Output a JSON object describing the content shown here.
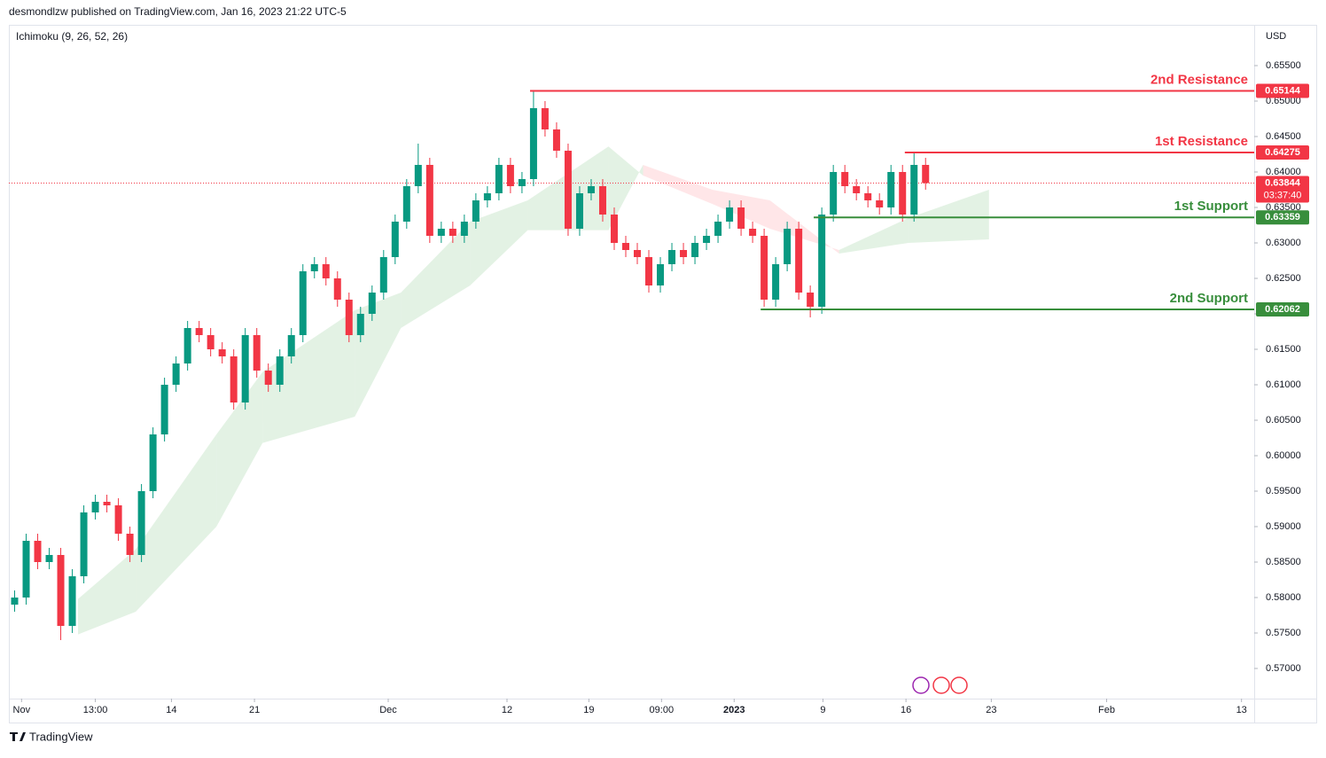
{
  "header": {
    "publisher": "desmondlzw published on TradingView.com, Jan 16, 2023 21:22 UTC-5",
    "indicator": "Ichimoku (9, 26, 52, 26)",
    "currency": "USD",
    "footer": "TradingView"
  },
  "chart_data": {
    "type": "candlestick",
    "up_color": "#089981",
    "down_color": "#f23645",
    "open": [
      0.579,
      0.58,
      0.588,
      0.585,
      0.586,
      0.576,
      0.583,
      0.592,
      0.5935,
      0.593,
      0.589,
      0.586,
      0.595,
      0.603,
      0.61,
      0.613,
      0.618,
      0.617,
      0.615,
      0.614,
      0.6075,
      0.617,
      0.612,
      0.61,
      0.614,
      0.617,
      0.626,
      0.627,
      0.625,
      0.622,
      0.617,
      0.62,
      0.623,
      0.628,
      0.633,
      0.638,
      0.641,
      0.631,
      0.632,
      0.631,
      0.633,
      0.636,
      0.637,
      0.641,
      0.638,
      0.639,
      0.649,
      0.646,
      0.643,
      0.632,
      0.637,
      0.638,
      0.634,
      0.63,
      0.629,
      0.628,
      0.624,
      0.627,
      0.629,
      0.628,
      0.63,
      0.631,
      0.633,
      0.635,
      0.632,
      0.631,
      0.622,
      0.627,
      0.632,
      0.623,
      0.621,
      0.634,
      0.64,
      0.638,
      0.637,
      0.636,
      0.635,
      0.64,
      0.634,
      0.641
    ],
    "high": [
      0.581,
      0.589,
      0.589,
      0.587,
      0.587,
      0.584,
      0.593,
      0.5945,
      0.5945,
      0.594,
      0.59,
      0.596,
      0.604,
      0.611,
      0.614,
      0.619,
      0.619,
      0.618,
      0.616,
      0.615,
      0.618,
      0.618,
      0.613,
      0.615,
      0.618,
      0.627,
      0.628,
      0.628,
      0.626,
      0.623,
      0.621,
      0.624,
      0.629,
      0.634,
      0.639,
      0.644,
      0.642,
      0.633,
      0.633,
      0.634,
      0.637,
      0.638,
      0.642,
      0.642,
      0.64,
      0.6515,
      0.65,
      0.647,
      0.644,
      0.638,
      0.639,
      0.639,
      0.635,
      0.631,
      0.63,
      0.629,
      0.628,
      0.63,
      0.63,
      0.631,
      0.632,
      0.634,
      0.636,
      0.636,
      0.633,
      0.632,
      0.628,
      0.633,
      0.633,
      0.624,
      0.635,
      0.641,
      0.641,
      0.639,
      0.638,
      0.637,
      0.641,
      0.641,
      0.6427,
      0.642
    ],
    "low": [
      0.578,
      0.579,
      0.584,
      0.584,
      0.574,
      0.575,
      0.582,
      0.591,
      0.592,
      0.588,
      0.585,
      0.585,
      0.594,
      0.602,
      0.609,
      0.612,
      0.616,
      0.614,
      0.613,
      0.6065,
      0.6065,
      0.611,
      0.609,
      0.609,
      0.613,
      0.616,
      0.625,
      0.624,
      0.621,
      0.616,
      0.616,
      0.619,
      0.622,
      0.627,
      0.632,
      0.637,
      0.63,
      0.63,
      0.63,
      0.63,
      0.632,
      0.635,
      0.636,
      0.637,
      0.637,
      0.638,
      0.645,
      0.642,
      0.631,
      0.631,
      0.636,
      0.633,
      0.629,
      0.628,
      0.627,
      0.623,
      0.623,
      0.626,
      0.627,
      0.627,
      0.629,
      0.63,
      0.632,
      0.631,
      0.63,
      0.621,
      0.621,
      0.626,
      0.622,
      0.6195,
      0.62,
      0.633,
      0.637,
      0.636,
      0.635,
      0.634,
      0.634,
      0.633,
      0.633,
      0.6375
    ],
    "close": [
      0.58,
      0.588,
      0.585,
      0.586,
      0.576,
      0.583,
      0.592,
      0.5935,
      0.593,
      0.589,
      0.586,
      0.595,
      0.603,
      0.61,
      0.613,
      0.618,
      0.617,
      0.615,
      0.614,
      0.6075,
      0.617,
      0.612,
      0.61,
      0.614,
      0.617,
      0.626,
      0.627,
      0.625,
      0.622,
      0.617,
      0.62,
      0.623,
      0.628,
      0.633,
      0.638,
      0.641,
      0.631,
      0.632,
      0.631,
      0.633,
      0.636,
      0.637,
      0.641,
      0.638,
      0.639,
      0.649,
      0.646,
      0.643,
      0.632,
      0.637,
      0.638,
      0.634,
      0.63,
      0.629,
      0.628,
      0.624,
      0.627,
      0.629,
      0.628,
      0.63,
      0.631,
      0.633,
      0.635,
      0.632,
      0.631,
      0.622,
      0.627,
      0.632,
      0.623,
      0.621,
      0.634,
      0.64,
      0.638,
      0.637,
      0.636,
      0.635,
      0.64,
      0.634,
      0.641,
      0.63844
    ],
    "cloud": {
      "x": [
        6,
        11,
        18,
        22,
        30,
        34,
        40,
        45,
        52,
        55,
        61,
        66,
        72,
        78,
        85
      ],
      "span_a": [
        0.5798,
        0.5868,
        0.603,
        0.6118,
        0.6205,
        0.623,
        0.633,
        0.636,
        0.6436,
        0.6395,
        0.6355,
        0.632,
        0.629,
        0.6335,
        0.6375
      ],
      "span_b": [
        0.5748,
        0.578,
        0.59,
        0.6018,
        0.6055,
        0.618,
        0.624,
        0.6318,
        0.6318,
        0.641,
        0.6375,
        0.636,
        0.6285,
        0.63,
        0.6305
      ],
      "up_color": "#c8e6c9",
      "down_color": "#ffcdd2"
    },
    "levels": [
      {
        "label": "2nd Resistance",
        "value": 0.65144,
        "start": 45.2,
        "color": "#f23645"
      },
      {
        "label": "1st Resistance",
        "value": 0.64275,
        "start": 77.7,
        "color": "#f23645"
      },
      {
        "label": "1st Support",
        "value": 0.63359,
        "start": 69.8,
        "color": "#388e3c"
      },
      {
        "label": "2nd Support",
        "value": 0.62062,
        "start": 65.2,
        "color": "#388e3c"
      }
    ],
    "last_price": {
      "value": 0.63844,
      "countdown": "03:37:40",
      "color": "#f23645"
    },
    "xlim": [
      0,
      108
    ],
    "xticks": [
      {
        "value": 1.1,
        "label": "Nov"
      },
      {
        "value": 7.5,
        "label": "13:00"
      },
      {
        "value": 14.1,
        "label": "14"
      },
      {
        "value": 21.3,
        "label": "21"
      },
      {
        "value": 32.9,
        "label": "Dec"
      },
      {
        "value": 43.2,
        "label": "12"
      },
      {
        "value": 50.3,
        "label": "19"
      },
      {
        "value": 56.6,
        "label": "09:00"
      },
      {
        "value": 62.9,
        "label": "2023"
      },
      {
        "value": 70.6,
        "label": "9"
      },
      {
        "value": 77.8,
        "label": "16"
      },
      {
        "value": 85.2,
        "label": "23"
      },
      {
        "value": 95.2,
        "label": "Feb"
      },
      {
        "value": 106.9,
        "label": "13"
      }
    ],
    "ylim": [
      0.56575,
      0.66075
    ],
    "yticks": [
      {
        "value": 0.655,
        "label": "0.65500"
      },
      {
        "value": 0.65,
        "label": "0.65000"
      },
      {
        "value": 0.645,
        "label": "0.64500"
      },
      {
        "value": 0.64,
        "label": "0.64000"
      },
      {
        "value": 0.635,
        "label": "0.63500"
      },
      {
        "value": 0.63,
        "label": "0.63000"
      },
      {
        "value": 0.625,
        "label": "0.62500"
      },
      {
        "value": 0.62,
        "label": "0.62000"
      },
      {
        "value": 0.615,
        "label": "0.61500"
      },
      {
        "value": 0.61,
        "label": "0.61000"
      },
      {
        "value": 0.605,
        "label": "0.60500"
      },
      {
        "value": 0.6,
        "label": "0.60000"
      },
      {
        "value": 0.595,
        "label": "0.59500"
      },
      {
        "value": 0.59,
        "label": "0.59000"
      },
      {
        "value": 0.585,
        "label": "0.58500"
      },
      {
        "value": 0.58,
        "label": "0.58000"
      },
      {
        "value": 0.575,
        "label": "0.57500"
      },
      {
        "value": 0.57,
        "label": "0.57000"
      }
    ]
  }
}
